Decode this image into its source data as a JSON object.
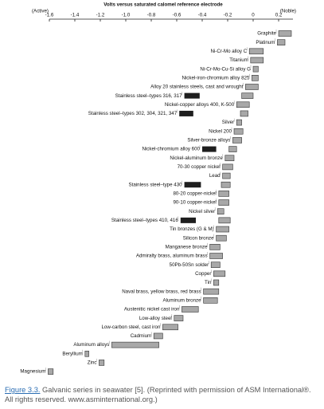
{
  "chart_data": {
    "type": "range_bar",
    "title": "Volts versus saturated calomel reference electrode",
    "left_label": "(Active)",
    "right_label": "(Noble)",
    "xlim": [
      -1.6,
      0.2
    ],
    "xticks": [
      -1.6,
      -1.4,
      -1.2,
      {
        "value": -1.0,
        "label": "-1.0"
      },
      -0.8,
      -0.6,
      -0.4,
      -0.2,
      0,
      0.2
    ],
    "color": "#a8a8a8",
    "active_color": "#1e1e1e",
    "categories": [
      "Graphite",
      "Platinum",
      "Ni-Cr-Mo alloy C",
      "Titanium",
      "Ni-Cr-Mo-Cu-Si alloy G",
      "Nickel-iron-chromium alloy 825",
      "Alloy 20 stainless steels, cast and wrought",
      "Stainless steel–types 316, 317",
      "Nickel-copper alloys 400, K-500",
      "Stainless steel–types 302, 304, 321, 347",
      "Silver",
      "Nickel 200",
      "Silver-bronze alloys",
      "Nickel-chromium alloy 600",
      "Nickel-aluminum bronze",
      "70-30 copper nickel",
      "Lead",
      "Stainless steel–type 430",
      "80-20 copper-nickel",
      "90-10 copper-nickel",
      "Nickel silver",
      "Stainless steel–types 410, 416",
      "Tin bronzes (G & M)",
      "Silicon bronze",
      "Manganese bronze",
      "Admiralty brass, aluminum brass",
      "50Pb-50Sn solder",
      "Copper",
      "Tin",
      "Naval brass, yellow brass, red brass",
      "Aluminum bronze",
      "Austenitic nickel cast iron",
      "Low-alloy steel",
      "Low-carbon steel, cast iron",
      "Cadmium",
      "Aluminum alloys",
      "Beryllium",
      "Zinc",
      "Magnesium"
    ],
    "ranges": [
      [
        0.2,
        0.3
      ],
      [
        0.19,
        0.25
      ],
      [
        -0.03,
        0.08
      ],
      [
        -0.02,
        0.08
      ],
      [
        0,
        0.04
      ],
      [
        -0.01,
        0.04
      ],
      [
        -0.06,
        0.04
      ],
      [
        -0.09,
        0
      ],
      [
        -0.13,
        -0.03
      ],
      [
        -0.1,
        -0.04
      ],
      [
        -0.13,
        -0.09
      ],
      [
        -0.15,
        -0.08
      ],
      [
        -0.16,
        -0.09
      ],
      [
        -0.19,
        -0.13
      ],
      [
        -0.22,
        -0.15
      ],
      [
        -0.24,
        -0.16
      ],
      [
        -0.24,
        -0.18
      ],
      [
        -0.25,
        -0.18
      ],
      [
        -0.27,
        -0.19
      ],
      [
        -0.27,
        -0.19
      ],
      [
        -0.28,
        -0.23
      ],
      [
        -0.27,
        -0.18
      ],
      [
        -0.29,
        -0.19
      ],
      [
        -0.29,
        -0.21
      ],
      [
        -0.34,
        -0.26
      ],
      [
        -0.34,
        -0.24
      ],
      [
        -0.33,
        -0.26
      ],
      [
        -0.31,
        -0.22
      ],
      [
        -0.31,
        -0.27
      ],
      [
        -0.39,
        -0.27
      ],
      [
        -0.39,
        -0.28
      ],
      [
        -0.56,
        -0.43
      ],
      [
        -0.62,
        -0.55
      ],
      [
        -0.71,
        -0.59
      ],
      [
        -0.78,
        -0.71
      ],
      [
        -1.11,
        -0.74
      ],
      [
        -1.32,
        -1.29
      ],
      [
        -1.21,
        -1.17
      ],
      [
        -1.61,
        -1.57
      ]
    ],
    "active_ranges": [
      null,
      null,
      null,
      null,
      null,
      null,
      null,
      [
        -0.54,
        -0.42
      ],
      null,
      [
        -0.58,
        -0.47
      ],
      null,
      null,
      null,
      [
        -0.4,
        -0.29
      ],
      null,
      null,
      null,
      [
        -0.54,
        -0.41
      ],
      null,
      null,
      null,
      [
        -0.57,
        -0.45
      ],
      null,
      null,
      null,
      null,
      null,
      null,
      null,
      null,
      null,
      null,
      null,
      null,
      null,
      null,
      null,
      null,
      null
    ],
    "caption_label": "Figure 3.3.",
    "caption": "Galvanic series in seawater [5]. (Reprinted with permission of ASM International®. All rights reserved. www.asminternational.org.)"
  }
}
